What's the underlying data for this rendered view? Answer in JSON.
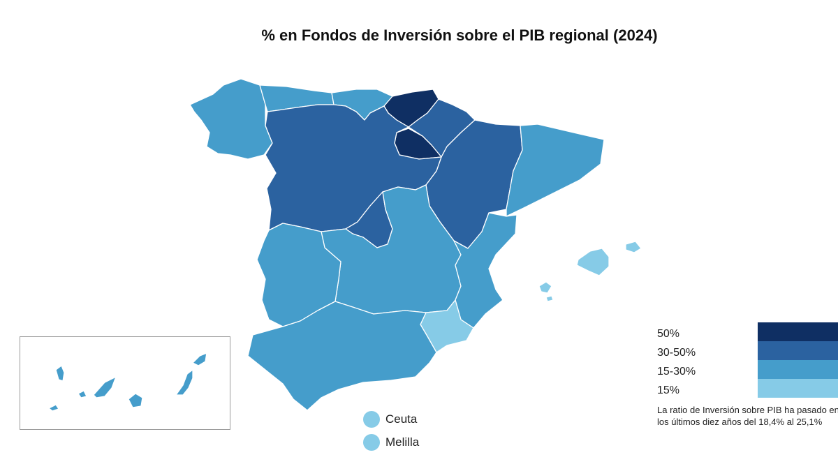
{
  "title": "% en Fondos de Inversión sobre el PIB regional (2024)",
  "colors": {
    "over_50": "#0f2f63",
    "c30_50": "#2b62a0",
    "c15_30": "#459dcb",
    "under_15": "#86cbe7"
  },
  "regions": [
    {
      "name": "Galicia",
      "category": "15-30%"
    },
    {
      "name": "Asturias",
      "category": "15-30%"
    },
    {
      "name": "Cantabria",
      "category": "15-30%"
    },
    {
      "name": "País Vasco",
      "category": "50%"
    },
    {
      "name": "Navarra",
      "category": "30-50%"
    },
    {
      "name": "La Rioja",
      "category": "50%"
    },
    {
      "name": "Aragón",
      "category": "30-50%"
    },
    {
      "name": "Cataluña",
      "category": "15-30%"
    },
    {
      "name": "Castilla y León",
      "category": "30-50%"
    },
    {
      "name": "Madrid",
      "category": "30-50%"
    },
    {
      "name": "Castilla-La Mancha",
      "category": "15-30%"
    },
    {
      "name": "Extremadura",
      "category": "15-30%"
    },
    {
      "name": "Comunidad Valenciana",
      "category": "15-30%"
    },
    {
      "name": "Región de Murcia",
      "category": "15%"
    },
    {
      "name": "Andalucía",
      "category": "15-30%"
    },
    {
      "name": "Islas Baleares",
      "category": "15%"
    },
    {
      "name": "Canarias",
      "category": "15-30%"
    }
  ],
  "cities": [
    {
      "label": "Ceuta",
      "category": "15%"
    },
    {
      "label": "Melilla",
      "category": "15%"
    }
  ],
  "legend": [
    {
      "label": "50%",
      "color": "#0f2f63"
    },
    {
      "label": "30-50%",
      "color": "#2b62a0"
    },
    {
      "label": "15-30%",
      "color": "#459dcb"
    },
    {
      "label": "15%",
      "color": "#86cbe7"
    }
  ],
  "note": {
    "line1": "La ratio de Inversión sobre PIB ha pasado en",
    "line2": "los últimos diez años del 18,4% al 25,1%"
  }
}
